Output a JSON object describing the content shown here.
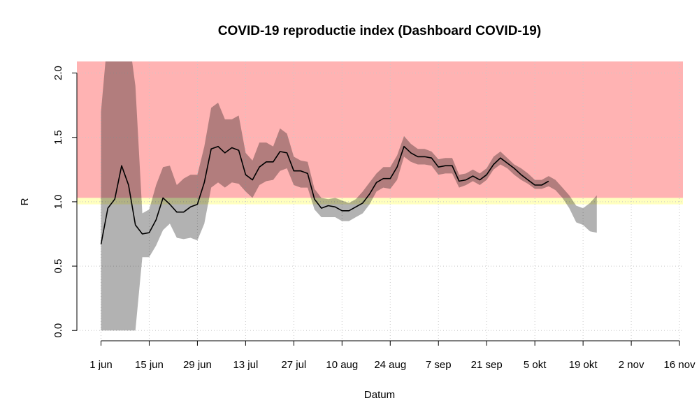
{
  "chart_data": {
    "type": "line",
    "title": "COVID-19 reproductie index (Dashboard COVID-19)",
    "x_label": "Datum",
    "y_label": "R",
    "x": [
      "06-01",
      "06-03",
      "06-05",
      "06-07",
      "06-09",
      "06-11",
      "06-13",
      "06-15",
      "06-17",
      "06-19",
      "06-21",
      "06-23",
      "06-25",
      "06-27",
      "06-29",
      "07-01",
      "07-03",
      "07-05",
      "07-07",
      "07-09",
      "07-11",
      "07-13",
      "07-15",
      "07-17",
      "07-19",
      "07-21",
      "07-23",
      "07-25",
      "07-27",
      "07-29",
      "07-31",
      "08-02",
      "08-04",
      "08-06",
      "08-08",
      "08-10",
      "08-12",
      "08-14",
      "08-16",
      "08-18",
      "08-20",
      "08-22",
      "08-24",
      "08-26",
      "08-28",
      "08-30",
      "09-01",
      "09-03",
      "09-05",
      "09-07",
      "09-09",
      "09-11",
      "09-13",
      "09-15",
      "09-17",
      "09-19",
      "09-21",
      "09-23",
      "09-25",
      "09-27",
      "09-29",
      "10-01",
      "10-03",
      "10-05",
      "10-07",
      "10-09",
      "10-11",
      "10-13",
      "10-15",
      "10-17",
      "10-19",
      "10-21",
      "10-23"
    ],
    "xlim": [
      "05-25",
      "11-17"
    ],
    "xticks": [
      {
        "value": "06-01",
        "label": "1 jun"
      },
      {
        "value": "06-15",
        "label": "15 jun"
      },
      {
        "value": "06-29",
        "label": "29 jun"
      },
      {
        "value": "07-13",
        "label": "13 jul"
      },
      {
        "value": "07-27",
        "label": "27 jul"
      },
      {
        "value": "08-10",
        "label": "10 aug"
      },
      {
        "value": "08-24",
        "label": "24 aug"
      },
      {
        "value": "09-07",
        "label": "7 sep"
      },
      {
        "value": "09-21",
        "label": "21 sep"
      },
      {
        "value": "10-05",
        "label": "5 okt"
      },
      {
        "value": "10-19",
        "label": "19 okt"
      },
      {
        "value": "11-02",
        "label": "2 nov"
      },
      {
        "value": "11-16",
        "label": "16 nov"
      }
    ],
    "ylim": [
      -0.08,
      2.09
    ],
    "yticks": [
      {
        "value": 0,
        "label": "0.0"
      },
      {
        "value": 0.5,
        "label": "0.5"
      },
      {
        "value": 1,
        "label": "1.0"
      },
      {
        "value": 1.5,
        "label": "1.5"
      },
      {
        "value": 2,
        "label": "2.0"
      }
    ],
    "grid": true,
    "regions": [
      {
        "from": 1.03,
        "to": 2.09,
        "color": "#ffb3b3"
      },
      {
        "from": 0.98,
        "to": 1.03,
        "color": "#ffffbf"
      }
    ],
    "band": {
      "color": "#000000",
      "opacity": 0.3,
      "lower": [
        0,
        0,
        0,
        0,
        0,
        0,
        0.57,
        0.57,
        0.66,
        0.78,
        0.83,
        0.72,
        0.71,
        0.72,
        0.7,
        0.83,
        1.11,
        1.15,
        1.11,
        1.15,
        1.14,
        1.08,
        1.03,
        1.13,
        1.16,
        1.17,
        1.24,
        1.26,
        1.13,
        1.11,
        1.11,
        0.94,
        0.88,
        0.88,
        0.88,
        0.85,
        0.85,
        0.88,
        0.91,
        0.98,
        1.08,
        1.11,
        1.1,
        1.17,
        1.35,
        1.31,
        1.29,
        1.29,
        1.28,
        1.21,
        1.22,
        1.22,
        1.11,
        1.13,
        1.16,
        1.13,
        1.17,
        1.25,
        1.29,
        1.26,
        1.21,
        1.17,
        1.14,
        1.1,
        1.1,
        1.12,
        1.09,
        1.03,
        0.95,
        0.84,
        0.82,
        0.77,
        0.76
      ],
      "upper": [
        1.7,
        2.3,
        2.3,
        2.3,
        2.3,
        1.9,
        0.91,
        0.94,
        1.13,
        1.27,
        1.28,
        1.13,
        1.18,
        1.21,
        1.21,
        1.43,
        1.73,
        1.77,
        1.64,
        1.64,
        1.67,
        1.38,
        1.32,
        1.46,
        1.46,
        1.43,
        1.57,
        1.53,
        1.35,
        1.32,
        1.31,
        1.1,
        1.03,
        1.02,
        1.03,
        1.01,
        0.99,
        1.02,
        1.08,
        1.15,
        1.22,
        1.27,
        1.27,
        1.36,
        1.51,
        1.45,
        1.41,
        1.41,
        1.39,
        1.33,
        1.34,
        1.34,
        1.21,
        1.22,
        1.25,
        1.22,
        1.26,
        1.35,
        1.39,
        1.34,
        1.29,
        1.26,
        1.22,
        1.17,
        1.17,
        1.2,
        1.17,
        1.11,
        1.05,
        0.97,
        0.95,
        0.99,
        1.05
      ]
    },
    "series": [
      {
        "color": "#000000",
        "values": [
          0.67,
          0.95,
          1.02,
          1.28,
          1.13,
          0.82,
          0.75,
          0.76,
          0.86,
          1.03,
          0.98,
          0.92,
          0.92,
          0.96,
          0.98,
          1.15,
          1.41,
          1.43,
          1.38,
          1.42,
          1.4,
          1.21,
          1.17,
          1.27,
          1.31,
          1.31,
          1.39,
          1.38,
          1.24,
          1.24,
          1.22,
          1.02,
          0.95,
          0.97,
          0.96,
          0.93,
          0.93,
          0.96,
          0.99,
          1.06,
          1.15,
          1.18,
          1.18,
          1.27,
          1.43,
          1.38,
          1.35,
          1.35,
          1.34,
          1.27,
          1.28,
          1.28,
          1.16,
          1.17,
          1.2,
          1.17,
          1.21,
          1.29,
          1.34,
          1.3,
          1.26,
          1.21,
          1.17,
          1.13,
          1.13,
          1.16,
          null,
          null,
          null,
          null,
          null,
          null,
          null
        ]
      }
    ]
  }
}
